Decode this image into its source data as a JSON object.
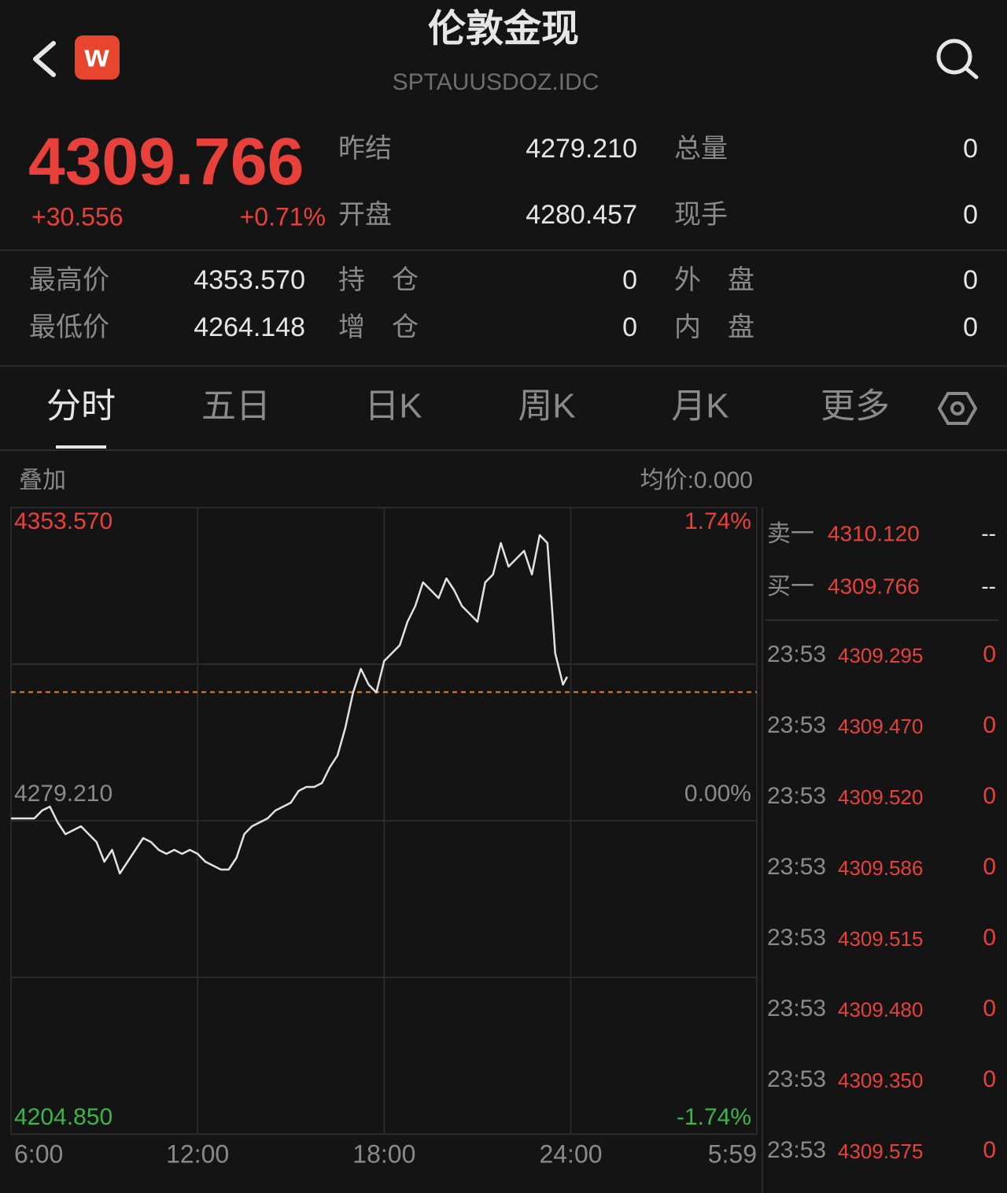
{
  "header": {
    "title": "伦敦金现",
    "code": "SPTAUUSDOZ.IDC",
    "logo": "w"
  },
  "quote": {
    "price": "4309.766",
    "change": "+30.556",
    "change_pct": "+0.71%",
    "stats": [
      {
        "label": "昨结",
        "value": "4279.210"
      },
      {
        "label": "总量",
        "value": "0"
      },
      {
        "label": "开盘",
        "value": "4280.457"
      },
      {
        "label": "现手",
        "value": "0"
      },
      {
        "label": "最高价",
        "value": "4353.570"
      },
      {
        "label": "持　仓",
        "value": "0"
      },
      {
        "label": "外　盘",
        "value": "0"
      },
      {
        "label": "最低价",
        "value": "4264.148"
      },
      {
        "label": "增　仓",
        "value": "0"
      },
      {
        "label": "内　盘",
        "value": "0"
      }
    ]
  },
  "tabs": {
    "items": [
      "分时",
      "五日",
      "日K",
      "周K",
      "月K",
      "更多"
    ],
    "active": 0
  },
  "chart_data": {
    "type": "line",
    "overlay_label": "叠加",
    "avg_label": "均价:0.000",
    "x": [
      "6:00",
      "6:15",
      "6:30",
      "6:45",
      "7:00",
      "7:15",
      "7:30",
      "7:45",
      "8:00",
      "8:15",
      "8:30",
      "8:45",
      "9:00",
      "9:15",
      "9:30",
      "9:45",
      "10:00",
      "10:15",
      "10:30",
      "10:45",
      "11:00",
      "11:15",
      "11:30",
      "11:45",
      "12:00",
      "12:15",
      "12:30",
      "12:45",
      "13:00",
      "13:15",
      "13:30",
      "13:45",
      "14:00",
      "14:15",
      "14:30",
      "14:45",
      "15:00",
      "15:15",
      "15:30",
      "15:45",
      "16:00",
      "16:15",
      "16:30",
      "16:45",
      "17:00",
      "17:15",
      "17:30",
      "17:45",
      "18:00",
      "18:15",
      "18:30",
      "18:45",
      "19:00",
      "19:15",
      "19:30",
      "19:45",
      "20:00",
      "20:15",
      "20:30",
      "20:45",
      "21:00",
      "21:15",
      "21:30",
      "21:45",
      "22:00",
      "22:15",
      "22:30",
      "22:45",
      "23:00",
      "23:15",
      "23:30",
      "23:45",
      "23:53"
    ],
    "series": [
      {
        "color": "#e2e2e2",
        "values": [
          4279.77,
          4279.77,
          4279.77,
          4279.77,
          4281.64,
          4282.57,
          4278.83,
          4276.03,
          4276.97,
          4277.9,
          4276.03,
          4274.16,
          4269.49,
          4272.29,
          4266.69,
          4269.49,
          4272.29,
          4275.1,
          4274.16,
          4272.29,
          4271.36,
          4272.29,
          4271.36,
          4272.29,
          4271.36,
          4269.49,
          4268.56,
          4267.62,
          4267.62,
          4270.43,
          4276.03,
          4277.9,
          4278.83,
          4279.77,
          4281.64,
          4282.57,
          4283.5,
          4286.31,
          4287.24,
          4287.24,
          4288.18,
          4291.91,
          4294.72,
          4301.25,
          4309.66,
          4315.27,
          4311.53,
          4309.66,
          4317.14,
          4319.0,
          4320.87,
          4326.48,
          4330.21,
          4335.82,
          4333.95,
          4332.08,
          4336.75,
          4333.95,
          4330.21,
          4328.35,
          4326.48,
          4335.82,
          4337.69,
          4345.16,
          4339.56,
          4341.43,
          4343.29,
          4337.69,
          4347.03,
          4345.16,
          4319.0,
          4311.53,
          4313.4
        ]
      }
    ],
    "xlim": [
      "6:00",
      "5:59"
    ],
    "xticks": [
      "6:00",
      "12:00",
      "18:00",
      "24:00",
      "5:59"
    ],
    "ylim": [
      4204.85,
      4353.57
    ],
    "yticks": [
      {
        "value": 4353.57,
        "label": "4353.570"
      },
      {
        "value": 4279.21,
        "label": "4279.210"
      },
      {
        "value": 4204.85,
        "label": "4204.850"
      }
    ],
    "y2lim": [
      -1.74,
      1.74
    ],
    "y2ticks": [
      {
        "value": 1.74,
        "label": "1.74%"
      },
      {
        "value": 0,
        "label": "0.00%"
      },
      {
        "value": -1.74,
        "label": "-1.74%"
      }
    ],
    "grid": true,
    "ref_line_color": "#e8862a"
  },
  "order_book": [
    {
      "label": "卖一",
      "price": "4310.120",
      "volume": "--"
    },
    {
      "label": "买一",
      "price": "4309.766",
      "volume": "--"
    }
  ],
  "trades": [
    {
      "time": "23:53",
      "price": "4309.295",
      "volume": "0"
    },
    {
      "time": "23:53",
      "price": "4309.470",
      "volume": "0"
    },
    {
      "time": "23:53",
      "price": "4309.520",
      "volume": "0"
    },
    {
      "time": "23:53",
      "price": "4309.586",
      "volume": "0"
    },
    {
      "time": "23:53",
      "price": "4309.515",
      "volume": "0"
    },
    {
      "time": "23:53",
      "price": "4309.480",
      "volume": "0"
    },
    {
      "time": "23:53",
      "price": "4309.350",
      "volume": "0"
    },
    {
      "time": "23:53",
      "price": "4309.575",
      "volume": "0"
    }
  ]
}
